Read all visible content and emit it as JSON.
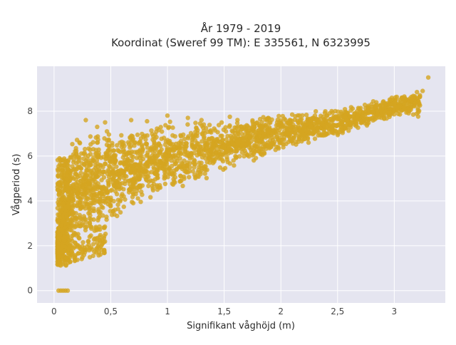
{
  "chart_data": {
    "type": "scatter",
    "title_lines": [
      "År 1979 - 2019",
      "Koordinat (Sweref 99 TM): E 335561, N 6323995"
    ],
    "xlabel": "Signifikant våghöjd (m)",
    "ylabel": "Vågperiod (s)",
    "xlim": [
      -0.15,
      3.45
    ],
    "ylim": [
      -0.55,
      10.0
    ],
    "xticks": [
      0,
      0.5,
      1,
      1.5,
      2,
      2.5,
      3
    ],
    "xtick_labels": [
      "0",
      "0,5",
      "1",
      "1,5",
      "2",
      "2,5",
      "3"
    ],
    "yticks": [
      0,
      2,
      4,
      6,
      8
    ],
    "ytick_labels": [
      "0",
      "2",
      "4",
      "6",
      "8"
    ],
    "grid": true,
    "legend": "none",
    "colors": {
      "points": "#d4a520",
      "plot_background": "#e5e5f0",
      "grid": "#ffffff"
    },
    "point_cloud": {
      "description_hidden": false,
      "lower_envelope": [
        [
          0.05,
          1.1
        ],
        [
          0.1,
          1.05
        ],
        [
          0.15,
          1.2
        ],
        [
          0.2,
          1.5
        ],
        [
          0.25,
          1.7
        ],
        [
          0.3,
          1.8
        ],
        [
          0.45,
          1.85
        ],
        [
          0.5,
          2.9
        ],
        [
          0.7,
          3.6
        ],
        [
          1.0,
          4.3
        ],
        [
          1.5,
          5.3
        ],
        [
          2.0,
          6.2
        ],
        [
          2.5,
          6.9
        ],
        [
          3.0,
          7.7
        ]
      ],
      "upper_envelope": [
        [
          0.05,
          3.0
        ],
        [
          0.1,
          6.1
        ],
        [
          0.2,
          7.0
        ],
        [
          0.3,
          7.2
        ],
        [
          0.5,
          7.2
        ],
        [
          0.8,
          7.4
        ],
        [
          1.0,
          7.6
        ],
        [
          1.5,
          7.6
        ],
        [
          2.0,
          7.9
        ],
        [
          2.5,
          8.1
        ],
        [
          3.0,
          8.7
        ],
        [
          3.3,
          8.9
        ]
      ],
      "outliers": [
        [
          0.28,
          7.6
        ],
        [
          0.45,
          7.5
        ],
        [
          0.68,
          7.6
        ],
        [
          1.0,
          7.8
        ],
        [
          1.18,
          7.7
        ],
        [
          1.55,
          7.75
        ],
        [
          1.88,
          7.65
        ],
        [
          2.3,
          7.8
        ],
        [
          2.48,
          8.0
        ],
        [
          2.65,
          7.9
        ],
        [
          2.9,
          8.4
        ],
        [
          3.05,
          8.5
        ],
        [
          3.2,
          8.85
        ],
        [
          3.25,
          8.9
        ],
        [
          3.3,
          9.5
        ],
        [
          0.38,
          7.3
        ],
        [
          0.82,
          7.55
        ],
        [
          1.3,
          7.6
        ],
        [
          2.1,
          7.85
        ]
      ],
      "zero_points": [
        [
          0.04,
          0.0
        ],
        [
          0.06,
          0.0
        ],
        [
          0.08,
          0.0
        ],
        [
          0.1,
          0.0
        ],
        [
          0.12,
          0.0
        ]
      ]
    }
  }
}
